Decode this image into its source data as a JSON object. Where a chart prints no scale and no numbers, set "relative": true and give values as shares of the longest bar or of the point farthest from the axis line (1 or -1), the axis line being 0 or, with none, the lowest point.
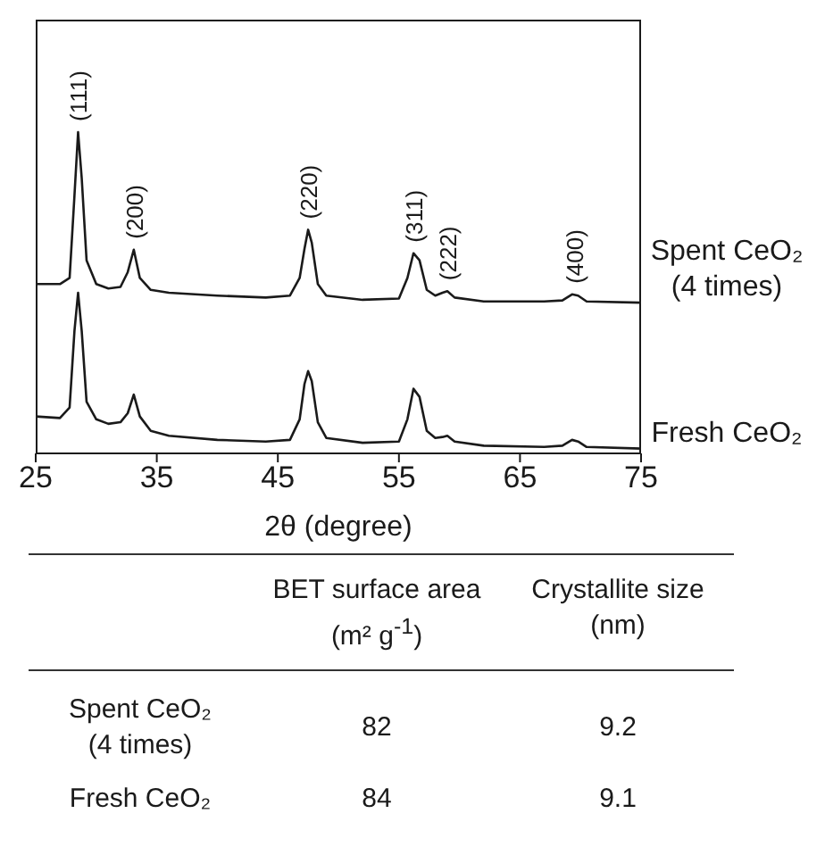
{
  "chart_data": {
    "type": "line",
    "relative": true,
    "xlabel": "2θ (degree)",
    "xlim": [
      25,
      75
    ],
    "xticks": [
      25,
      35,
      45,
      55,
      65,
      75
    ],
    "marker": "none",
    "line_style": "solid",
    "series": [
      {
        "name": "Spent CeO₂ (4 times)",
        "color": "#1a1a1a",
        "x": [
          25,
          27,
          27.8,
          28.2,
          28.5,
          28.8,
          29.2,
          30,
          31,
          32,
          32.6,
          33.1,
          33.6,
          34.5,
          36,
          40,
          44,
          46,
          46.8,
          47.2,
          47.5,
          47.8,
          48.3,
          49,
          52,
          55,
          55.7,
          56.2,
          56.7,
          57.3,
          58,
          58.6,
          59,
          59.6,
          62,
          67,
          68.5,
          69.3,
          69.8,
          70.5,
          75
        ],
        "values": [
          0.527,
          0.527,
          0.546,
          0.802,
          1.0,
          0.857,
          0.601,
          0.527,
          0.513,
          0.518,
          0.564,
          0.634,
          0.546,
          0.509,
          0.5,
          0.491,
          0.485,
          0.491,
          0.546,
          0.637,
          0.696,
          0.656,
          0.527,
          0.491,
          0.478,
          0.482,
          0.546,
          0.623,
          0.601,
          0.509,
          0.491,
          0.5,
          0.505,
          0.485,
          0.473,
          0.473,
          0.476,
          0.495,
          0.491,
          0.473,
          0.469
        ]
      },
      {
        "name": "Fresh CeO₂",
        "color": "#1a1a1a",
        "x": [
          25,
          27,
          27.8,
          28.2,
          28.5,
          28.8,
          29.2,
          30,
          31,
          32,
          32.6,
          33.1,
          33.6,
          34.5,
          36,
          40,
          44,
          46,
          46.8,
          47.2,
          47.5,
          47.8,
          48.3,
          49,
          52,
          55,
          55.7,
          56.2,
          56.7,
          57.3,
          58,
          58.6,
          59,
          59.6,
          62,
          67,
          68.5,
          69.3,
          69.8,
          70.5,
          75
        ],
        "values": [
          0.115,
          0.11,
          0.143,
          0.381,
          0.5,
          0.381,
          0.161,
          0.106,
          0.092,
          0.097,
          0.125,
          0.183,
          0.115,
          0.07,
          0.055,
          0.042,
          0.037,
          0.042,
          0.106,
          0.216,
          0.256,
          0.225,
          0.097,
          0.048,
          0.033,
          0.037,
          0.106,
          0.201,
          0.176,
          0.07,
          0.048,
          0.051,
          0.055,
          0.037,
          0.024,
          0.02,
          0.024,
          0.042,
          0.037,
          0.02,
          0.015
        ]
      }
    ],
    "annotations": [
      {
        "text": "(111)",
        "x": 28.5,
        "y": 1.0
      },
      {
        "text": "(200)",
        "x": 33.1,
        "y": 0.634
      },
      {
        "text": "(220)",
        "x": 47.5,
        "y": 0.696
      },
      {
        "text": "(311)",
        "x": 56.2,
        "y": 0.623
      },
      {
        "text": "(222)",
        "x": 59,
        "y": 0.505
      },
      {
        "text": "(400)",
        "x": 69.5,
        "y": 0.495
      },
      "BET surface area (m² g$^{-1}$)",
      "Crystallite size (nm)",
      "Spent CeO₂ (4 times)",
      "82",
      "9.2",
      "Fresh CeO₂",
      "84",
      "9.1"
    ]
  }
}
